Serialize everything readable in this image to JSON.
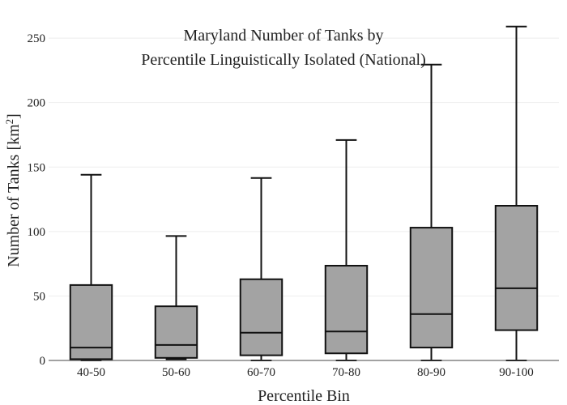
{
  "chart_data": {
    "type": "box",
    "title_lines": [
      "Maryland Number of Tanks by",
      "Percentile Linguistically Isolated (National)"
    ],
    "xlabel": "Percentile Bin",
    "ylabel_main": "Number of Tanks  [km",
    "ylabel_sup": "2",
    "ylabel_end": "]",
    "categories": [
      "40-50",
      "50-60",
      "60-70",
      "70-80",
      "80-90",
      "90-100"
    ],
    "boxes": [
      {
        "category": "40-50",
        "min": 0,
        "q1": 1,
        "median": 10,
        "q3": 58.5,
        "max": 144
      },
      {
        "category": "50-60",
        "min": 1,
        "q1": 2,
        "median": 12,
        "q3": 42,
        "max": 96.5
      },
      {
        "category": "60-70",
        "min": 0,
        "q1": 4,
        "median": 21.5,
        "q3": 63,
        "max": 141.5
      },
      {
        "category": "70-80",
        "min": 0,
        "q1": 5.5,
        "median": 22.5,
        "q3": 73.5,
        "max": 171
      },
      {
        "category": "80-90",
        "min": 0,
        "q1": 10,
        "median": 36,
        "q3": 103,
        "max": 229.5
      },
      {
        "category": "90-100",
        "min": 0,
        "q1": 23.5,
        "median": 56,
        "q3": 120,
        "max": 259
      }
    ],
    "y_ticks": [
      0,
      50,
      100,
      150,
      200,
      250
    ],
    "ylim": [
      0,
      262
    ],
    "grid": true,
    "box_fill": "#a3a3a3",
    "box_stroke": "#111111"
  }
}
